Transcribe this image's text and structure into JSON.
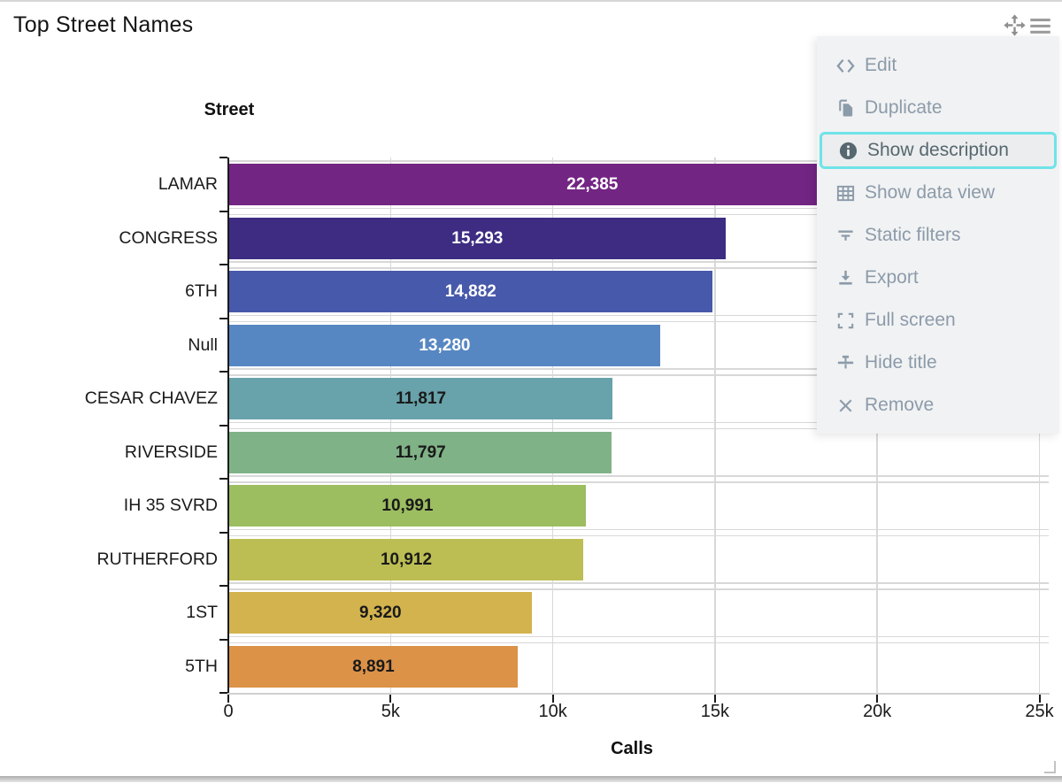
{
  "widget": {
    "title": "Top Street Names",
    "toolbar": {
      "move_icon": "move-icon",
      "menu_icon": "hamburger-icon"
    },
    "resize_handle": "resize-corner-icon"
  },
  "chart_data": {
    "type": "bar",
    "orientation": "horizontal",
    "title": "Top Street Names",
    "xlabel": "Calls",
    "ylabel": "Street",
    "categories": [
      "LAMAR",
      "CONGRESS",
      "6TH",
      "Null",
      "CESAR CHAVEZ",
      "RIVERSIDE",
      "IH 35 SVRD",
      "RUTHERFORD",
      "1ST",
      "5TH"
    ],
    "values": [
      22385,
      15293,
      14882,
      13280,
      11817,
      11797,
      10991,
      10912,
      9320,
      8891
    ],
    "value_labels": [
      "22,385",
      "15,293",
      "14,882",
      "13,280",
      "11,817",
      "11,797",
      "10,991",
      "10,912",
      "9,320",
      "8,891"
    ],
    "bar_colors": [
      "#722583",
      "#3d2c82",
      "#4759aa",
      "#5787c3",
      "#68a2aa",
      "#80b287",
      "#9cbd60",
      "#bcbe53",
      "#d3b34e",
      "#dc9247"
    ],
    "value_label_colors": [
      "#ffffff",
      "#ffffff",
      "#ffffff",
      "#ffffff",
      "#1a1a1a",
      "#1a1a1a",
      "#1a1a1a",
      "#1a1a1a",
      "#1a1a1a",
      "#1a1a1a"
    ],
    "xlim": [
      0,
      25000
    ],
    "x_tick_values": [
      0,
      5000,
      10000,
      15000,
      20000,
      25000
    ],
    "x_tick_labels": [
      "0",
      "5k",
      "10k",
      "15k",
      "20k",
      "25k"
    ],
    "grid": true,
    "legend": false
  },
  "menu": {
    "items": [
      {
        "label": "Edit",
        "icon": "code-icon",
        "highlighted": false
      },
      {
        "label": "Duplicate",
        "icon": "duplicate-icon",
        "highlighted": false
      },
      {
        "label": "Show description",
        "icon": "info-icon",
        "highlighted": true
      },
      {
        "label": "Show data view",
        "icon": "table-icon",
        "highlighted": false
      },
      {
        "label": "Static filters",
        "icon": "filter-icon",
        "highlighted": false
      },
      {
        "label": "Export",
        "icon": "download-icon",
        "highlighted": false
      },
      {
        "label": "Full screen",
        "icon": "fullscreen-icon",
        "highlighted": false
      },
      {
        "label": "Hide title",
        "icon": "hide-title-icon",
        "highlighted": false
      },
      {
        "label": "Remove",
        "icon": "close-icon",
        "highlighted": false
      }
    ],
    "highlight_color": "#6fe3e8",
    "background": "#f1f2f3",
    "text_color": "#8c9baa",
    "active_text_color": "#57676f"
  }
}
